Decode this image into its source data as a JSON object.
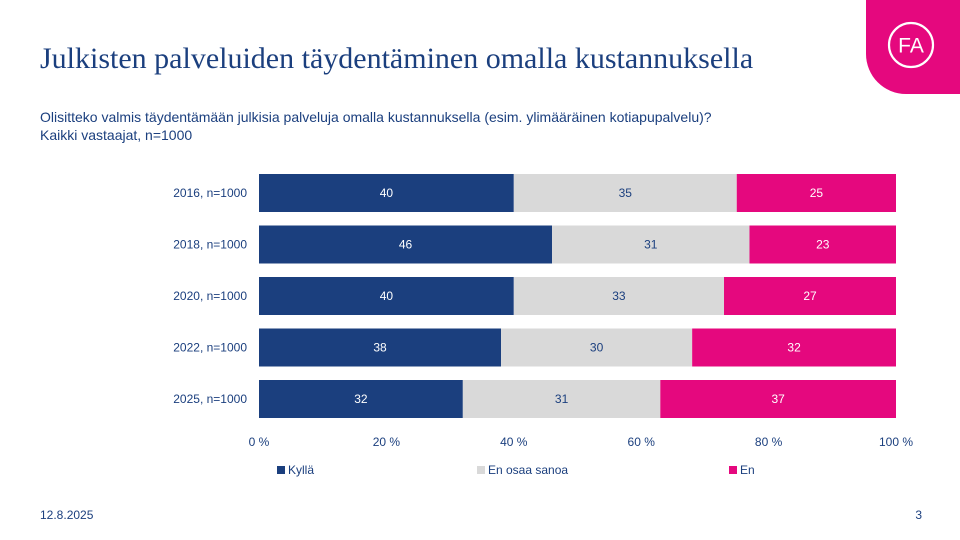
{
  "slide": {
    "title": "Julkisten palveluiden täydentäminen omalla kustannuksella",
    "subtitle_line1": "Olisitteko valmis täydentämään julkisia palveluja omalla kustannuksella (esim. ylimääräinen kotiapupalvelu)?",
    "subtitle_line2": "Kaikki vastaajat, n=1000",
    "logo_text": "FA",
    "date": "12.8.2025",
    "page_number": "3"
  },
  "colors": {
    "accent": "#e5087e",
    "navy": "#1b3f7e",
    "grey": "#d9d9d9"
  },
  "chart_data": {
    "type": "bar",
    "orientation": "horizontal",
    "stacked": true,
    "categories": [
      "2016, n=1000",
      "2018, n=1000",
      "2020, n=1000",
      "2022, n=1000",
      "2025, n=1000"
    ],
    "series": [
      {
        "name": "Kyllä",
        "values": [
          40,
          46,
          40,
          38,
          32
        ],
        "color": "#1b3f7e",
        "label_color": "#ffffff"
      },
      {
        "name": "En osaa sanoa",
        "values": [
          35,
          31,
          33,
          30,
          31
        ],
        "color": "#d9d9d9",
        "label_color": "#1b3f7e"
      },
      {
        "name": "En",
        "values": [
          25,
          23,
          27,
          32,
          37
        ],
        "color": "#e5087e",
        "label_color": "#ffffff"
      }
    ],
    "xlim": [
      0,
      100
    ],
    "xticks": [
      "0 %",
      "20 %",
      "40 %",
      "60 %",
      "80 %",
      "100 %"
    ],
    "legend_position": "bottom",
    "grid": false
  }
}
